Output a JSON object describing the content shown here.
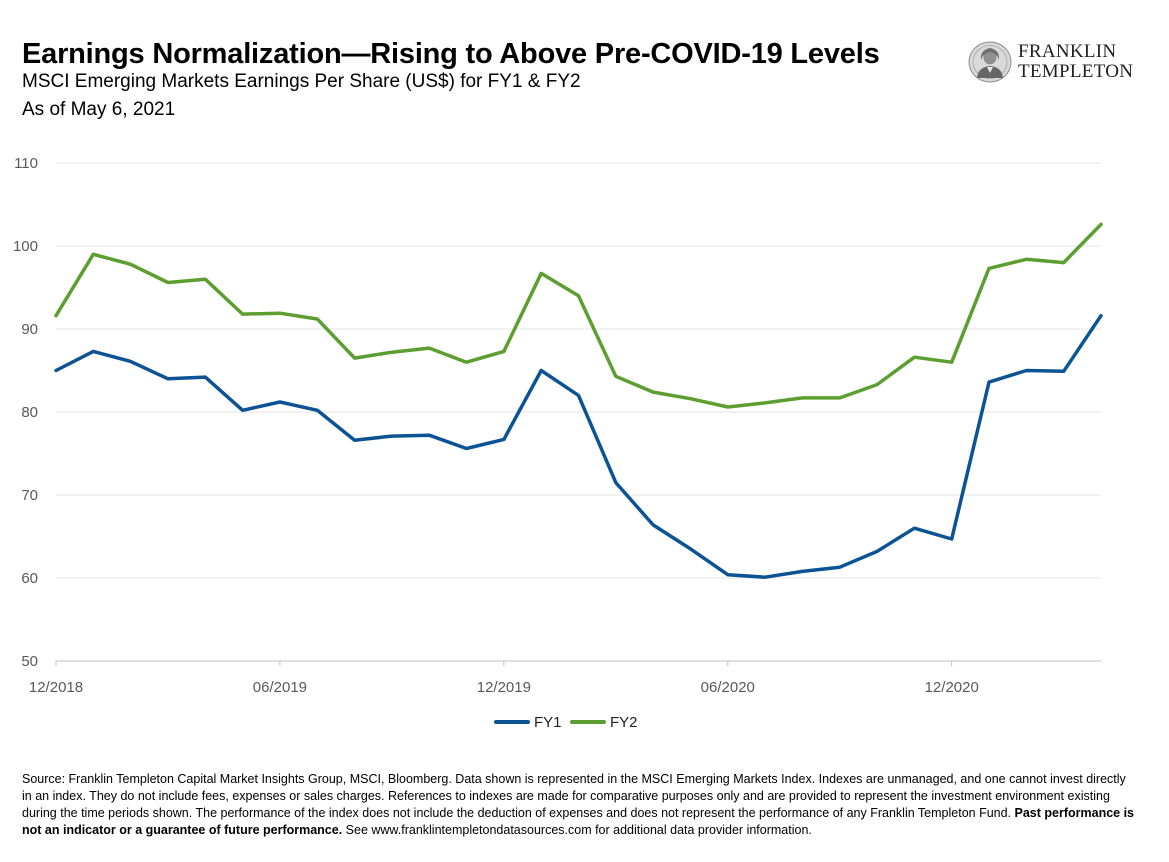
{
  "header": {
    "title": "Earnings Normalization—Rising to Above Pre-COVID-19 Levels",
    "subtitle": "MSCI Emerging Markets Earnings Per Share (US$) for FY1 & FY2",
    "as_of": "As of May 6, 2021"
  },
  "logo": {
    "line1": "FRANKLIN",
    "line2": "TEMPLETON",
    "icon": "franklin-portrait-icon"
  },
  "colors": {
    "fy1": "#0b5394",
    "fy2": "#5c9e2f",
    "grid": "#e6e6e6",
    "axis": "#bfbfbf",
    "tick_text": "#595959"
  },
  "chart_data": {
    "type": "line",
    "title": "",
    "xlabel": "",
    "ylabel": "",
    "ylim": [
      50,
      110
    ],
    "yticks": [
      50,
      60,
      70,
      80,
      90,
      100,
      110
    ],
    "grid": true,
    "legend_position": "bottom-center",
    "x": [
      "12/2018",
      "01/2019",
      "02/2019",
      "03/2019",
      "04/2019",
      "05/2019",
      "06/2019",
      "07/2019",
      "08/2019",
      "09/2019",
      "10/2019",
      "11/2019",
      "12/2019",
      "01/2020",
      "02/2020",
      "03/2020",
      "04/2020",
      "05/2020",
      "06/2020",
      "07/2020",
      "08/2020",
      "09/2020",
      "10/2020",
      "11/2020",
      "12/2020",
      "01/2021",
      "02/2021",
      "03/2021",
      "04/2021"
    ],
    "x_tick_labels": [
      "12/2018",
      "06/2019",
      "12/2019",
      "06/2020",
      "12/2020"
    ],
    "series": [
      {
        "name": "FY1",
        "color": "#0b5394",
        "values": [
          85.0,
          87.3,
          86.1,
          84.0,
          84.2,
          80.2,
          81.2,
          80.2,
          76.6,
          77.1,
          77.2,
          75.6,
          76.7,
          85.0,
          82.0,
          71.5,
          66.4,
          63.5,
          60.4,
          60.1,
          60.8,
          61.3,
          63.2,
          66.0,
          64.7,
          83.6,
          85.0,
          84.9,
          91.6
        ]
      },
      {
        "name": "FY2",
        "color": "#5c9e2f",
        "values": [
          91.6,
          99.0,
          97.8,
          95.6,
          96.0,
          91.8,
          91.9,
          91.2,
          86.5,
          87.2,
          87.7,
          86.0,
          87.3,
          96.7,
          94.0,
          84.3,
          82.4,
          81.6,
          80.6,
          81.1,
          81.7,
          81.7,
          83.3,
          86.6,
          86.0,
          97.3,
          98.4,
          98.0,
          102.6
        ]
      }
    ]
  },
  "legend": {
    "items": [
      "FY1",
      "FY2"
    ]
  },
  "footer": {
    "source_text": "Source: Franklin Templeton Capital Market Insights Group, MSCI, Bloomberg. Data shown is represented in the MSCI Emerging Markets Index. Indexes are unmanaged, and one cannot invest directly in an index. They do not include fees, expenses or sales charges. References to indexes are made for comparative purposes only and are provided to represent the investment environment existing during the time periods shown. The performance of the index does not include the deduction of expenses and does not represent the performance of any Franklin Templeton Fund. ",
    "disclaimer_bold": "Past performance is not an indicator or a guarantee of future performance.",
    "source_tail": " See www.franklintempletondatasources.com for additional data provider information."
  }
}
